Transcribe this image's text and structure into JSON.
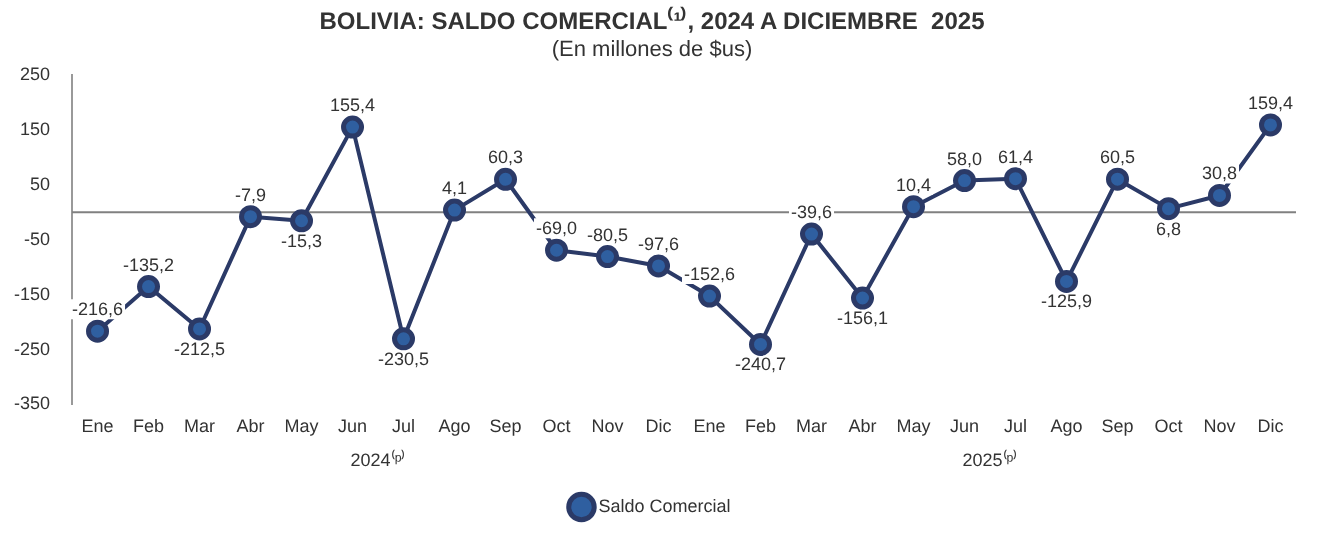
{
  "chart_data": {
    "type": "line",
    "title": "BOLIVIA: SALDO COMERCIAL⁽¹⁾, 2024 A DICIEMBRE  2025",
    "subtitle": "(En millones de $us)",
    "categories": [
      "Ene",
      "Feb",
      "Mar",
      "Abr",
      "May",
      "Jun",
      "Jul",
      "Ago",
      "Sep",
      "Oct",
      "Nov",
      "Dic",
      "Ene",
      "Feb",
      "Mar",
      "Abr",
      "May",
      "Jun",
      "Jul",
      "Ago",
      "Sep",
      "Oct",
      "Nov",
      "Dic"
    ],
    "series": [
      {
        "name": "Saldo Comercial",
        "color": "#2b3a67",
        "values": [
          -216.6,
          -135.2,
          -212.5,
          -7.9,
          -15.3,
          155.4,
          -230.5,
          4.1,
          60.3,
          -69.0,
          -80.5,
          -97.6,
          -152.6,
          -240.7,
          -39.6,
          -156.1,
          10.4,
          58.0,
          61.4,
          -125.9,
          60.5,
          6.8,
          30.8,
          159.4
        ],
        "value_labels": [
          "-216,6",
          "-135,2",
          "-212,5",
          "-7,9",
          "-15,3",
          "155,4",
          "-230,5",
          "4,1",
          "60,3",
          "-69,0",
          "-80,5",
          "-97,6",
          "-152,6",
          "-240,7",
          "-39,6",
          "-156,1",
          "10,4",
          "58,0",
          "61,4",
          "-125,9",
          "60,5",
          "6,8",
          "30,8",
          "159,4"
        ]
      }
    ],
    "ylim": [
      -350,
      250
    ],
    "yticks": [
      -350,
      -250,
      -150,
      -50,
      50,
      150,
      250
    ],
    "ref_lines": [
      {
        "axis": "y",
        "value": 0,
        "color": "#808080"
      }
    ],
    "annotations": [
      "2024⁽ᵖ⁾",
      "2025⁽ᵖ⁾"
    ],
    "grid": false,
    "legend": "bottom",
    "marker": "circle",
    "line_style": "solid"
  }
}
